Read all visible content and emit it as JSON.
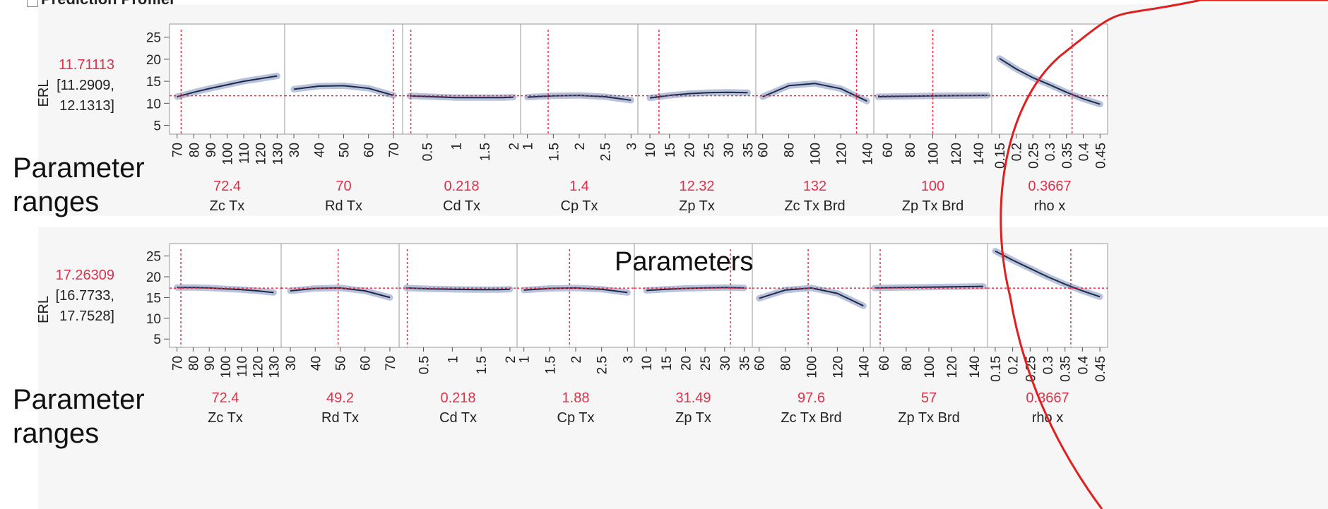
{
  "header": {
    "title": "Prediction Profiler"
  },
  "annotations": {
    "ranges_line1": "Parameter",
    "ranges_line2": "ranges",
    "parameters": "Parameters"
  },
  "colors": {
    "current": "#e0304a",
    "curve": "#1c2a4a",
    "band": "#9aa8cc",
    "grid": "#999999",
    "annotation_circle": "#e02020"
  },
  "chart_data": [
    {
      "type": "line",
      "ylabel": "ERL",
      "ylim": [
        3,
        28
      ],
      "yticks": [
        5,
        10,
        15,
        20,
        25
      ],
      "prediction": "11.71113",
      "ci_line1": "[11.2909,",
      "ci_line2": "12.1313]",
      "current_y": 11.71113,
      "factors": [
        {
          "name": "Zc Tx",
          "value_label": "72.4",
          "current": 72.4,
          "xlim": [
            68,
            132
          ],
          "ticks": [
            "70",
            "80",
            "90",
            "100",
            "110",
            "120",
            "130"
          ],
          "tick_vals": [
            70,
            80,
            90,
            100,
            110,
            120,
            130
          ],
          "curve_x": [
            70,
            80,
            90,
            100,
            110,
            120,
            130
          ],
          "curve_y": [
            11.5,
            12.5,
            13.4,
            14.2,
            15,
            15.6,
            16.2
          ]
        },
        {
          "name": "Rd Tx",
          "value_label": "70",
          "current": 70,
          "xlim": [
            28,
            72
          ],
          "ticks": [
            "30",
            "40",
            "50",
            "60",
            "70"
          ],
          "tick_vals": [
            30,
            40,
            50,
            60,
            70
          ],
          "curve_x": [
            30,
            40,
            50,
            60,
            70
          ],
          "curve_y": [
            13.2,
            13.9,
            14,
            13.4,
            11.8
          ]
        },
        {
          "name": "Cd Tx",
          "value_label": "0.218",
          "current": 0.218,
          "xlim": [
            0.15,
            2.05
          ],
          "ticks": [
            "0.5",
            "1",
            "1.5",
            "2"
          ],
          "tick_vals": [
            0.5,
            1,
            1.5,
            2
          ],
          "curve_x": [
            0.2,
            0.6,
            1,
            1.4,
            1.8,
            2
          ],
          "curve_y": [
            11.7,
            11.5,
            11.3,
            11.3,
            11.3,
            11.4
          ]
        },
        {
          "name": "Cp Tx",
          "value_label": "1.4",
          "current": 1.4,
          "xlim": [
            0.95,
            3.05
          ],
          "ticks": [
            "1",
            "1.5",
            "2",
            "2.5",
            "3"
          ],
          "tick_vals": [
            1,
            1.5,
            2,
            2.5,
            3
          ],
          "curve_x": [
            1,
            1.5,
            2,
            2.5,
            3
          ],
          "curve_y": [
            11.4,
            11.7,
            11.8,
            11.5,
            10.7
          ]
        },
        {
          "name": "Zp Tx",
          "value_label": "12.32",
          "current": 12.32,
          "xlim": [
            8,
            36
          ],
          "ticks": [
            "10",
            "15",
            "20",
            "25",
            "30",
            "35"
          ],
          "tick_vals": [
            10,
            15,
            20,
            25,
            30,
            35
          ],
          "curve_x": [
            10,
            15,
            20,
            25,
            30,
            35
          ],
          "curve_y": [
            11.2,
            11.8,
            12.2,
            12.4,
            12.5,
            12.4
          ]
        },
        {
          "name": "Zc Tx Brd",
          "value_label": "132",
          "current": 132,
          "xlim": [
            58,
            142
          ],
          "ticks": [
            "60",
            "80",
            "100",
            "120",
            "140"
          ],
          "tick_vals": [
            60,
            80,
            100,
            120,
            140
          ],
          "curve_x": [
            60,
            80,
            100,
            120,
            140
          ],
          "curve_y": [
            11.5,
            14,
            14.5,
            13.3,
            10.5
          ]
        },
        {
          "name": "Zp Tx Brd",
          "value_label": "100",
          "current": 100,
          "xlim": [
            52,
            148
          ],
          "ticks": [
            "60",
            "80",
            "100",
            "120",
            "140"
          ],
          "tick_vals": [
            60,
            80,
            100,
            120,
            140
          ],
          "curve_x": [
            52,
            100,
            148
          ],
          "curve_y": [
            11.5,
            11.7,
            11.8
          ]
        },
        {
          "name": "rho x",
          "value_label": "0.3667",
          "current": 0.3667,
          "xlim": [
            0.14,
            0.46
          ],
          "ticks": [
            "0.15",
            "0.2",
            "0.25",
            "0.3",
            "0.35",
            "0.4",
            "0.45"
          ],
          "tick_vals": [
            0.15,
            0.2,
            0.25,
            0.3,
            0.35,
            0.4,
            0.45
          ],
          "curve_x": [
            0.15,
            0.2,
            0.25,
            0.3,
            0.35,
            0.4,
            0.45
          ],
          "curve_y": [
            20.2,
            17.8,
            15.8,
            14.2,
            12.5,
            11,
            9.8
          ]
        }
      ]
    },
    {
      "type": "line",
      "ylabel": "ERL",
      "ylim": [
        3,
        28
      ],
      "yticks": [
        5,
        10,
        15,
        20,
        25
      ],
      "prediction": "17.26309",
      "ci_line1": "[16.7733,",
      "ci_line2": "17.7528]",
      "current_y": 17.26309,
      "factors": [
        {
          "name": "Zc Tx",
          "value_label": "72.4",
          "current": 72.4,
          "xlim": [
            68,
            132
          ],
          "ticks": [
            "70",
            "80",
            "90",
            "100",
            "110",
            "120",
            "130"
          ],
          "tick_vals": [
            70,
            80,
            90,
            100,
            110,
            120,
            130
          ],
          "curve_x": [
            70,
            80,
            90,
            100,
            110,
            120,
            130
          ],
          "curve_y": [
            17.4,
            17.4,
            17.3,
            17.1,
            16.9,
            16.6,
            16.2
          ]
        },
        {
          "name": "Rd Tx",
          "value_label": "49.2",
          "current": 49.2,
          "xlim": [
            28,
            72
          ],
          "ticks": [
            "30",
            "40",
            "50",
            "60",
            "70"
          ],
          "tick_vals": [
            30,
            40,
            50,
            60,
            70
          ],
          "curve_x": [
            30,
            40,
            50,
            60,
            70
          ],
          "curve_y": [
            16.6,
            17.2,
            17.3,
            16.6,
            15
          ]
        },
        {
          "name": "Cd Tx",
          "value_label": "0.218",
          "current": 0.218,
          "xlim": [
            0.15,
            2.05
          ],
          "ticks": [
            "0.5",
            "1",
            "1.5",
            "2"
          ],
          "tick_vals": [
            0.5,
            1,
            1.5,
            2
          ],
          "curve_x": [
            0.2,
            0.6,
            1,
            1.4,
            1.8,
            2
          ],
          "curve_y": [
            17.3,
            17.1,
            17,
            16.9,
            16.9,
            17
          ]
        },
        {
          "name": "Cp Tx",
          "value_label": "1.88",
          "current": 1.88,
          "xlim": [
            0.95,
            3.05
          ],
          "ticks": [
            "1",
            "1.5",
            "2",
            "2.5",
            "3"
          ],
          "tick_vals": [
            1,
            1.5,
            2,
            2.5,
            3
          ],
          "curve_x": [
            1,
            1.5,
            2,
            2.5,
            3
          ],
          "curve_y": [
            16.8,
            17.2,
            17.3,
            17.0,
            16.2
          ]
        },
        {
          "name": "Zp Tx",
          "value_label": "31.49",
          "current": 31.49,
          "xlim": [
            8,
            36
          ],
          "ticks": [
            "10",
            "15",
            "20",
            "25",
            "30",
            "35"
          ],
          "tick_vals": [
            10,
            15,
            20,
            25,
            30,
            35
          ],
          "curve_x": [
            10,
            15,
            20,
            25,
            30,
            35
          ],
          "curve_y": [
            16.7,
            17,
            17.2,
            17.3,
            17.4,
            17.3
          ]
        },
        {
          "name": "Zc Tx Brd",
          "value_label": "97.6",
          "current": 97.6,
          "xlim": [
            58,
            142
          ],
          "ticks": [
            "60",
            "80",
            "100",
            "120",
            "140"
          ],
          "tick_vals": [
            60,
            80,
            100,
            120,
            140
          ],
          "curve_x": [
            60,
            80,
            100,
            120,
            140
          ],
          "curve_y": [
            14.8,
            16.8,
            17.3,
            16,
            13
          ]
        },
        {
          "name": "Zp Tx Brd",
          "value_label": "57",
          "current": 57,
          "xlim": [
            52,
            148
          ],
          "ticks": [
            "60",
            "80",
            "100",
            "120",
            "140"
          ],
          "tick_vals": [
            60,
            80,
            100,
            120,
            140
          ],
          "curve_x": [
            52,
            100,
            148
          ],
          "curve_y": [
            17.3,
            17.5,
            17.7
          ]
        },
        {
          "name": "rho x",
          "value_label": "0.3667",
          "current": 0.3667,
          "xlim": [
            0.14,
            0.46
          ],
          "ticks": [
            "0.15",
            "0.2",
            "0.25",
            "0.3",
            "0.35",
            "0.4",
            "0.45"
          ],
          "tick_vals": [
            0.15,
            0.2,
            0.25,
            0.3,
            0.35,
            0.4,
            0.45
          ],
          "curve_x": [
            0.15,
            0.2,
            0.25,
            0.3,
            0.35,
            0.4,
            0.45
          ],
          "curve_y": [
            26.2,
            24,
            22,
            20,
            18.2,
            16.6,
            15.2
          ]
        }
      ]
    }
  ]
}
